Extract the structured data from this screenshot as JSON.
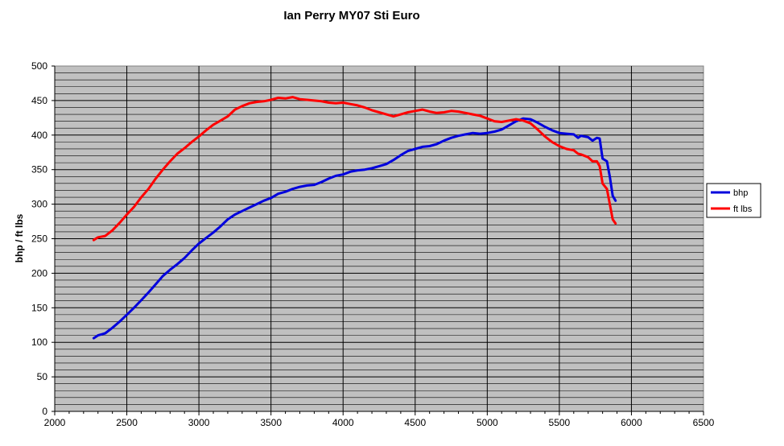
{
  "chart_data": {
    "type": "line",
    "title": "Ian Perry MY07 Sti Euro",
    "xlabel": "",
    "ylabel": "bhp / ft lbs",
    "xlim": [
      2000,
      6500
    ],
    "ylim": [
      0,
      500
    ],
    "x_ticks": [
      2000,
      2500,
      3000,
      3500,
      4000,
      4500,
      5000,
      5500,
      6000,
      6500
    ],
    "y_ticks": [
      0,
      50,
      100,
      150,
      200,
      250,
      300,
      350,
      400,
      450,
      500
    ],
    "grid": true,
    "legend_position": "right",
    "plot_background": "#c0c0c0",
    "series": [
      {
        "name": "bhp",
        "color": "#0000dd",
        "x": [
          2270,
          2300,
          2350,
          2400,
          2450,
          2500,
          2550,
          2600,
          2650,
          2700,
          2750,
          2800,
          2850,
          2900,
          2950,
          3000,
          3050,
          3100,
          3150,
          3200,
          3250,
          3300,
          3350,
          3400,
          3450,
          3500,
          3550,
          3600,
          3650,
          3700,
          3750,
          3800,
          3850,
          3900,
          3950,
          4000,
          4050,
          4100,
          4150,
          4200,
          4250,
          4300,
          4350,
          4400,
          4450,
          4500,
          4550,
          4600,
          4650,
          4700,
          4750,
          4800,
          4850,
          4900,
          4950,
          5000,
          5050,
          5100,
          5150,
          5200,
          5250,
          5300,
          5350,
          5400,
          5450,
          5500,
          5550,
          5600,
          5630,
          5650,
          5700,
          5730,
          5760,
          5780,
          5800,
          5830,
          5850,
          5870,
          5890
        ],
        "values": [
          106,
          110,
          113,
          121,
          130,
          140,
          150,
          161,
          172,
          184,
          196,
          205,
          213,
          222,
          233,
          243,
          251,
          259,
          268,
          278,
          285,
          290,
          295,
          300,
          305,
          309,
          315,
          318,
          322,
          325,
          327,
          328,
          332,
          337,
          341,
          343,
          347,
          349,
          350,
          352,
          355,
          358,
          364,
          371,
          377,
          380,
          383,
          384,
          387,
          392,
          396,
          399,
          401,
          403,
          402,
          403,
          405,
          408,
          414,
          420,
          424,
          423,
          418,
          412,
          407,
          403,
          402,
          401,
          396,
          399,
          397,
          392,
          396,
          395,
          366,
          362,
          340,
          312,
          305
        ]
      },
      {
        "name": "ft lbs",
        "color": "#ff0000",
        "x": [
          2270,
          2300,
          2350,
          2400,
          2450,
          2500,
          2550,
          2600,
          2650,
          2700,
          2750,
          2800,
          2850,
          2900,
          2950,
          3000,
          3050,
          3100,
          3150,
          3200,
          3250,
          3300,
          3350,
          3400,
          3450,
          3500,
          3550,
          3600,
          3650,
          3700,
          3750,
          3800,
          3850,
          3900,
          3950,
          4000,
          4050,
          4100,
          4150,
          4200,
          4250,
          4300,
          4350,
          4400,
          4450,
          4500,
          4550,
          4600,
          4650,
          4700,
          4750,
          4800,
          4850,
          4900,
          4950,
          5000,
          5050,
          5100,
          5150,
          5200,
          5250,
          5300,
          5350,
          5400,
          5450,
          5500,
          5550,
          5600,
          5630,
          5650,
          5700,
          5730,
          5760,
          5780,
          5800,
          5830,
          5850,
          5870,
          5890
        ],
        "values": [
          248,
          252,
          254,
          262,
          273,
          285,
          296,
          310,
          322,
          337,
          350,
          362,
          373,
          381,
          390,
          398,
          407,
          415,
          421,
          427,
          437,
          442,
          446,
          448,
          449,
          451,
          454,
          453,
          455,
          452,
          451,
          450,
          449,
          447,
          446,
          447,
          445,
          443,
          440,
          436,
          433,
          430,
          427,
          430,
          433,
          435,
          437,
          434,
          432,
          433,
          435,
          434,
          432,
          430,
          428,
          424,
          420,
          419,
          421,
          423,
          421,
          417,
          408,
          398,
          390,
          384,
          380,
          378,
          373,
          372,
          368,
          362,
          362,
          355,
          330,
          322,
          300,
          278,
          272
        ]
      }
    ]
  }
}
